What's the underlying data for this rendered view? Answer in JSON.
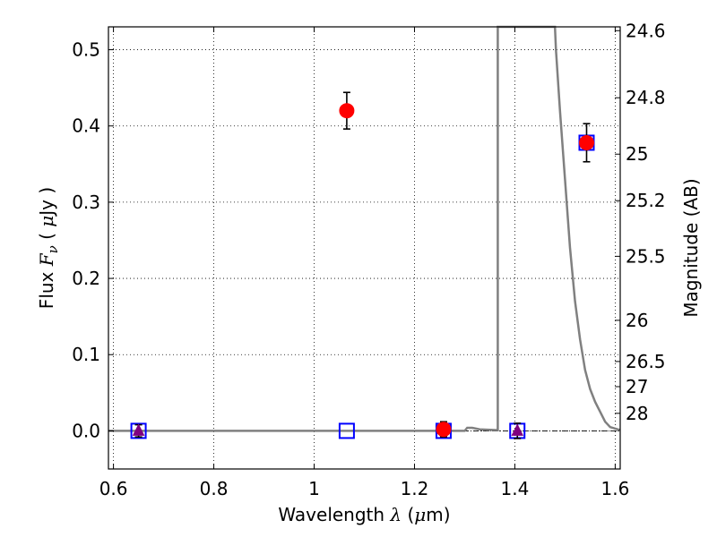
{
  "chart_data": {
    "type": "scatter",
    "xlabel": {
      "prefix": "Wavelength  ",
      "symbol": "λ",
      "suffix": " (",
      "unit_math": "μ",
      "unit_rest": "m)"
    },
    "ylabel": {
      "prefix": "Flux  ",
      "symbol": "F",
      "subscript": "ν",
      "suffix": "  ( ",
      "unit_math": "μ",
      "unit_rest": "Jy )"
    },
    "y2label": "Magnitude (AB)",
    "xlim": [
      0.59,
      1.61
    ],
    "ylim": [
      -0.05,
      0.53
    ],
    "grid": true,
    "x_ticks": [
      {
        "value": 0.6,
        "label": "0.6"
      },
      {
        "value": 0.8,
        "label": "0.8"
      },
      {
        "value": 1.0,
        "label": "1"
      },
      {
        "value": 1.2,
        "label": "1.2"
      },
      {
        "value": 1.4,
        "label": "1.4"
      },
      {
        "value": 1.6,
        "label": "1.6"
      }
    ],
    "y_ticks": [
      {
        "value": 0.0,
        "label": "0.0"
      },
      {
        "value": 0.1,
        "label": "0.1"
      },
      {
        "value": 0.2,
        "label": "0.2"
      },
      {
        "value": 0.3,
        "label": "0.3"
      },
      {
        "value": 0.4,
        "label": "0.4"
      },
      {
        "value": 0.5,
        "label": "0.5"
      }
    ],
    "y2_ticks": [
      {
        "label": "24.6",
        "flux": 0.525
      },
      {
        "label": "24.8",
        "flux": 0.437
      },
      {
        "label": "25",
        "flux": 0.363
      },
      {
        "label": "25.2",
        "flux": 0.302
      },
      {
        "label": "25.5",
        "flux": 0.229
      },
      {
        "label": "26",
        "flux": 0.145
      },
      {
        "label": "26.5",
        "flux": 0.091
      },
      {
        "label": "27",
        "flux": 0.058
      },
      {
        "label": "28",
        "flux": 0.023
      }
    ],
    "series": [
      {
        "marker": "circle",
        "color": "#ff0000",
        "points": [
          {
            "x": 1.065,
            "y": 0.42,
            "err": 0.024
          },
          {
            "x": 1.258,
            "y": 0.002,
            "err": 0.01
          },
          {
            "x": 1.543,
            "y": 0.378,
            "err": 0.025
          }
        ]
      },
      {
        "marker": "open-square",
        "color": "#0000ff",
        "points": [
          {
            "x": 0.65,
            "y": 0.0
          },
          {
            "x": 1.065,
            "y": 0.0
          },
          {
            "x": 1.258,
            "y": 0.0
          },
          {
            "x": 1.405,
            "y": 0.0
          },
          {
            "x": 1.543,
            "y": 0.378
          }
        ]
      },
      {
        "marker": "triangle",
        "color": "#800080",
        "points": [
          {
            "x": 0.65,
            "y": 0.0,
            "err": 0.008
          },
          {
            "x": 1.405,
            "y": 0.0,
            "err": 0.01
          }
        ]
      },
      {
        "marker": "line",
        "color": "#808080",
        "points": [
          {
            "x": 0.59,
            "y": 0.0
          },
          {
            "x": 1.3,
            "y": 0.0
          },
          {
            "x": 1.305,
            "y": 0.004
          },
          {
            "x": 1.315,
            "y": 0.004
          },
          {
            "x": 1.33,
            "y": 0.002
          },
          {
            "x": 1.366,
            "y": 0.001
          },
          {
            "x": 1.366,
            "y": 0.53
          },
          {
            "x": 1.48,
            "y": 0.53
          },
          {
            "x": 1.482,
            "y": 0.5
          },
          {
            "x": 1.49,
            "y": 0.42
          },
          {
            "x": 1.5,
            "y": 0.33
          },
          {
            "x": 1.51,
            "y": 0.24
          },
          {
            "x": 1.52,
            "y": 0.17
          },
          {
            "x": 1.53,
            "y": 0.12
          },
          {
            "x": 1.54,
            "y": 0.08
          },
          {
            "x": 1.55,
            "y": 0.055
          },
          {
            "x": 1.56,
            "y": 0.038
          },
          {
            "x": 1.57,
            "y": 0.025
          },
          {
            "x": 1.58,
            "y": 0.012
          },
          {
            "x": 1.59,
            "y": 0.005
          },
          {
            "x": 1.61,
            "y": 0.001
          }
        ]
      }
    ]
  }
}
